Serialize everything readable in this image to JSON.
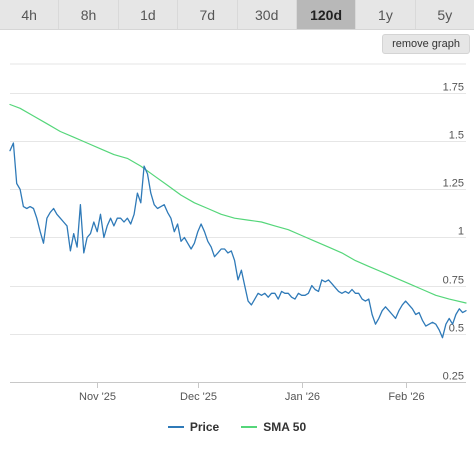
{
  "tabs": [
    {
      "label": "4h",
      "active": false
    },
    {
      "label": "8h",
      "active": false
    },
    {
      "label": "1d",
      "active": false
    },
    {
      "label": "7d",
      "active": false
    },
    {
      "label": "30d",
      "active": false
    },
    {
      "label": "120d",
      "active": true
    },
    {
      "label": "1y",
      "active": false
    },
    {
      "label": "5y",
      "active": false
    }
  ],
  "remove_graph_label": "remove graph",
  "colors": {
    "price": "#2f7ab8",
    "sma": "#55d67a",
    "grid": "#e6e6e6",
    "axis": "#c8c8c8",
    "tick_text": "#555555",
    "active_tab": "#b8b8b8"
  },
  "chart_data": {
    "type": "line",
    "title": "",
    "xlabel": "",
    "ylabel": "",
    "x_range": [
      "2025-10-06",
      "2026-02-19"
    ],
    "ylim": [
      0.25,
      1.9
    ],
    "yticks": [
      0.25,
      0.5,
      0.75,
      1,
      1.25,
      1.5,
      1.75
    ],
    "ytick_labels": [
      "0.25",
      "0.5",
      "0.75",
      "1",
      "1.25",
      "1.5",
      "1.75"
    ],
    "xticks": [
      {
        "date": "2025-11-01",
        "label": "Nov '25"
      },
      {
        "date": "2025-12-01",
        "label": "Dec '25"
      },
      {
        "date": "2026-01-01",
        "label": "Jan '26"
      },
      {
        "date": "2026-02-01",
        "label": "Feb '26"
      }
    ],
    "grid": true,
    "legend_position": "bottom-center",
    "series": [
      {
        "name": "Price",
        "color": "#2f7ab8",
        "points": [
          [
            "2025-10-06",
            1.45
          ],
          [
            "2025-10-07",
            1.49
          ],
          [
            "2025-10-08",
            1.28
          ],
          [
            "2025-10-09",
            1.25
          ],
          [
            "2025-10-10",
            1.16
          ],
          [
            "2025-10-11",
            1.15
          ],
          [
            "2025-10-12",
            1.16
          ],
          [
            "2025-10-13",
            1.15
          ],
          [
            "2025-10-14",
            1.1
          ],
          [
            "2025-10-15",
            1.03
          ],
          [
            "2025-10-16",
            0.97
          ],
          [
            "2025-10-17",
            1.1
          ],
          [
            "2025-10-18",
            1.13
          ],
          [
            "2025-10-19",
            1.15
          ],
          [
            "2025-10-20",
            1.12
          ],
          [
            "2025-10-21",
            1.1
          ],
          [
            "2025-10-22",
            1.08
          ],
          [
            "2025-10-23",
            1.06
          ],
          [
            "2025-10-24",
            0.93
          ],
          [
            "2025-10-25",
            1.02
          ],
          [
            "2025-10-26",
            0.95
          ],
          [
            "2025-10-27",
            1.17
          ],
          [
            "2025-10-28",
            0.92
          ],
          [
            "2025-10-29",
            1.0
          ],
          [
            "2025-10-30",
            1.02
          ],
          [
            "2025-10-31",
            1.08
          ],
          [
            "2025-11-01",
            1.03
          ],
          [
            "2025-11-02",
            1.12
          ],
          [
            "2025-11-03",
            1.0
          ],
          [
            "2025-11-04",
            1.06
          ],
          [
            "2025-11-05",
            1.1
          ],
          [
            "2025-11-06",
            1.06
          ],
          [
            "2025-11-07",
            1.1
          ],
          [
            "2025-11-08",
            1.1
          ],
          [
            "2025-11-09",
            1.08
          ],
          [
            "2025-11-10",
            1.1
          ],
          [
            "2025-11-11",
            1.07
          ],
          [
            "2025-11-12",
            1.12
          ],
          [
            "2025-11-13",
            1.23
          ],
          [
            "2025-11-14",
            1.18
          ],
          [
            "2025-11-15",
            1.37
          ],
          [
            "2025-11-16",
            1.33
          ],
          [
            "2025-11-17",
            1.23
          ],
          [
            "2025-11-18",
            1.17
          ],
          [
            "2025-11-19",
            1.15
          ],
          [
            "2025-11-20",
            1.16
          ],
          [
            "2025-11-21",
            1.17
          ],
          [
            "2025-11-22",
            1.13
          ],
          [
            "2025-11-23",
            1.1
          ],
          [
            "2025-11-24",
            1.03
          ],
          [
            "2025-11-25",
            1.07
          ],
          [
            "2025-11-26",
            0.98
          ],
          [
            "2025-11-27",
            1.0
          ],
          [
            "2025-11-28",
            0.97
          ],
          [
            "2025-11-29",
            0.94
          ],
          [
            "2025-11-30",
            0.97
          ],
          [
            "2025-12-01",
            1.03
          ],
          [
            "2025-12-02",
            1.07
          ],
          [
            "2025-12-03",
            1.03
          ],
          [
            "2025-12-04",
            0.98
          ],
          [
            "2025-12-05",
            0.95
          ],
          [
            "2025-12-06",
            0.9
          ],
          [
            "2025-12-07",
            0.92
          ],
          [
            "2025-12-08",
            0.94
          ],
          [
            "2025-12-09",
            0.94
          ],
          [
            "2025-12-10",
            0.92
          ],
          [
            "2025-12-11",
            0.93
          ],
          [
            "2025-12-12",
            0.88
          ],
          [
            "2025-12-13",
            0.78
          ],
          [
            "2025-12-14",
            0.83
          ],
          [
            "2025-12-15",
            0.75
          ],
          [
            "2025-12-16",
            0.67
          ],
          [
            "2025-12-17",
            0.65
          ],
          [
            "2025-12-18",
            0.68
          ],
          [
            "2025-12-19",
            0.71
          ],
          [
            "2025-12-20",
            0.7
          ],
          [
            "2025-12-21",
            0.71
          ],
          [
            "2025-12-22",
            0.69
          ],
          [
            "2025-12-23",
            0.71
          ],
          [
            "2025-12-24",
            0.71
          ],
          [
            "2025-12-25",
            0.68
          ],
          [
            "2025-12-26",
            0.72
          ],
          [
            "2025-12-27",
            0.71
          ],
          [
            "2025-12-28",
            0.71
          ],
          [
            "2025-12-29",
            0.69
          ],
          [
            "2025-12-30",
            0.68
          ],
          [
            "2025-12-31",
            0.71
          ],
          [
            "2026-01-01",
            0.7
          ],
          [
            "2026-01-02",
            0.7
          ],
          [
            "2026-01-03",
            0.71
          ],
          [
            "2026-01-04",
            0.75
          ],
          [
            "2026-01-05",
            0.73
          ],
          [
            "2026-01-06",
            0.72
          ],
          [
            "2026-01-07",
            0.78
          ],
          [
            "2026-01-08",
            0.77
          ],
          [
            "2026-01-09",
            0.78
          ],
          [
            "2026-01-10",
            0.76
          ],
          [
            "2026-01-11",
            0.74
          ],
          [
            "2026-01-12",
            0.72
          ],
          [
            "2026-01-13",
            0.71
          ],
          [
            "2026-01-14",
            0.72
          ],
          [
            "2026-01-15",
            0.71
          ],
          [
            "2026-01-16",
            0.73
          ],
          [
            "2026-01-17",
            0.71
          ],
          [
            "2026-01-18",
            0.71
          ],
          [
            "2026-01-19",
            0.68
          ],
          [
            "2026-01-20",
            0.67
          ],
          [
            "2026-01-21",
            0.68
          ],
          [
            "2026-01-22",
            0.6
          ],
          [
            "2026-01-23",
            0.55
          ],
          [
            "2026-01-24",
            0.58
          ],
          [
            "2026-01-25",
            0.62
          ],
          [
            "2026-01-26",
            0.64
          ],
          [
            "2026-01-27",
            0.62
          ],
          [
            "2026-01-28",
            0.6
          ],
          [
            "2026-01-29",
            0.58
          ],
          [
            "2026-01-30",
            0.62
          ],
          [
            "2026-01-31",
            0.65
          ],
          [
            "2026-02-01",
            0.67
          ],
          [
            "2026-02-02",
            0.65
          ],
          [
            "2026-02-03",
            0.63
          ],
          [
            "2026-02-04",
            0.6
          ],
          [
            "2026-02-05",
            0.61
          ],
          [
            "2026-02-06",
            0.57
          ],
          [
            "2026-02-07",
            0.54
          ],
          [
            "2026-02-08",
            0.55
          ],
          [
            "2026-02-09",
            0.56
          ],
          [
            "2026-02-10",
            0.55
          ],
          [
            "2026-02-11",
            0.52
          ],
          [
            "2026-02-12",
            0.48
          ],
          [
            "2026-02-13",
            0.55
          ],
          [
            "2026-02-14",
            0.58
          ],
          [
            "2026-02-15",
            0.55
          ],
          [
            "2026-02-16",
            0.6
          ],
          [
            "2026-02-17",
            0.63
          ],
          [
            "2026-02-18",
            0.61
          ],
          [
            "2026-02-19",
            0.62
          ]
        ]
      },
      {
        "name": "SMA 50",
        "color": "#55d67a",
        "points": [
          [
            "2025-10-06",
            1.69
          ],
          [
            "2025-10-09",
            1.67
          ],
          [
            "2025-10-13",
            1.63
          ],
          [
            "2025-10-17",
            1.59
          ],
          [
            "2025-10-21",
            1.55
          ],
          [
            "2025-10-25",
            1.52
          ],
          [
            "2025-10-29",
            1.49
          ],
          [
            "2025-11-02",
            1.46
          ],
          [
            "2025-11-06",
            1.43
          ],
          [
            "2025-11-10",
            1.41
          ],
          [
            "2025-11-14",
            1.37
          ],
          [
            "2025-11-18",
            1.32
          ],
          [
            "2025-11-22",
            1.27
          ],
          [
            "2025-11-26",
            1.22
          ],
          [
            "2025-11-30",
            1.18
          ],
          [
            "2025-12-04",
            1.15
          ],
          [
            "2025-12-08",
            1.12
          ],
          [
            "2025-12-12",
            1.1
          ],
          [
            "2025-12-16",
            1.09
          ],
          [
            "2025-12-20",
            1.08
          ],
          [
            "2025-12-24",
            1.06
          ],
          [
            "2025-12-28",
            1.04
          ],
          [
            "2026-01-01",
            1.01
          ],
          [
            "2026-01-05",
            0.98
          ],
          [
            "2026-01-09",
            0.95
          ],
          [
            "2026-01-13",
            0.92
          ],
          [
            "2026-01-17",
            0.88
          ],
          [
            "2026-01-21",
            0.85
          ],
          [
            "2026-01-25",
            0.82
          ],
          [
            "2026-01-29",
            0.79
          ],
          [
            "2026-02-02",
            0.76
          ],
          [
            "2026-02-06",
            0.73
          ],
          [
            "2026-02-10",
            0.7
          ],
          [
            "2026-02-14",
            0.68
          ],
          [
            "2026-02-19",
            0.66
          ]
        ]
      }
    ]
  }
}
